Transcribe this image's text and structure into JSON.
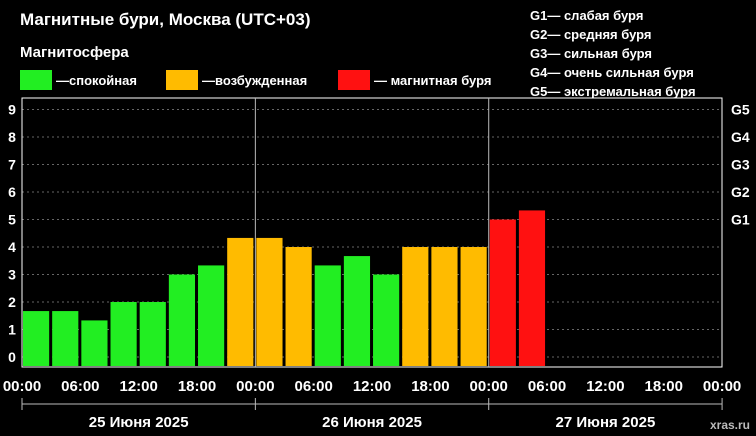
{
  "header": {
    "title": "Магнитные бури, Москва (UTC+03)",
    "subtitle": "Магнитосфера"
  },
  "legend": [
    {
      "label": "—спокойная",
      "color": "#22ee22"
    },
    {
      "label": "—возбужденная",
      "color": "#ffbb00"
    },
    {
      "label": "— магнитная буря",
      "color": "#ff1111"
    }
  ],
  "storm_scale": [
    {
      "label": "G1— слабая буря"
    },
    {
      "label": "G2— средняя буря"
    },
    {
      "label": "G3— сильная буря"
    },
    {
      "label": "G4— очень сильная буря"
    },
    {
      "label": "G5— экстремальная буря"
    }
  ],
  "credit": "xras.ru",
  "colors": {
    "quiet": "#22ee22",
    "active": "#ffbb00",
    "storm": "#ff1111",
    "grid": "#666666"
  },
  "chart_data": {
    "type": "bar",
    "ylim": [
      0,
      9
    ],
    "y_ticks": [
      "0",
      "1",
      "2",
      "3",
      "4",
      "5",
      "6",
      "7",
      "8",
      "9"
    ],
    "right_ticks": [
      {
        "label": "G1",
        "value": 5
      },
      {
        "label": "G2",
        "value": 6
      },
      {
        "label": "G3",
        "value": 7
      },
      {
        "label": "G4",
        "value": 8
      },
      {
        "label": "G5",
        "value": 9
      }
    ],
    "x_tick_labels": [
      "00:00",
      "06:00",
      "12:00",
      "18:00",
      "00:00",
      "06:00",
      "12:00",
      "18:00",
      "00:00",
      "06:00",
      "12:00",
      "18:00",
      "00:00"
    ],
    "days": [
      "25 Июня 2025",
      "26 Июня 2025",
      "27 Июня 2025"
    ],
    "slots_per_day": 8,
    "values": [
      1.67,
      1.67,
      1.33,
      2.0,
      2.0,
      3.0,
      3.33,
      4.33,
      4.33,
      4.0,
      3.33,
      3.67,
      3.0,
      4.0,
      4.0,
      4.0,
      5.0,
      5.33
    ],
    "levels": [
      "quiet",
      "quiet",
      "quiet",
      "quiet",
      "quiet",
      "quiet",
      "quiet",
      "active",
      "active",
      "active",
      "quiet",
      "quiet",
      "quiet",
      "active",
      "active",
      "active",
      "storm",
      "storm"
    ]
  }
}
